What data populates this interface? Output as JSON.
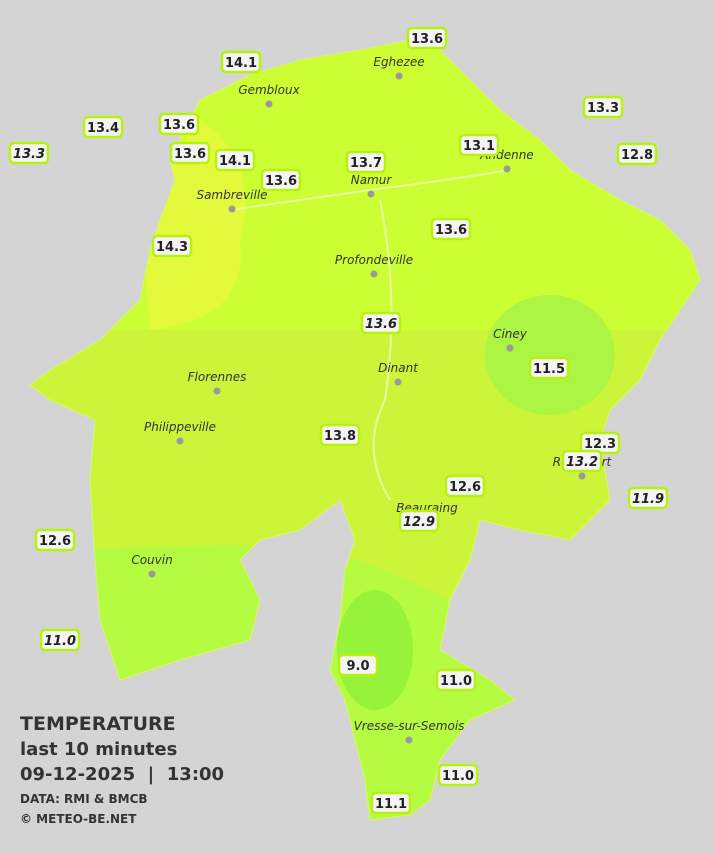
{
  "stations": [
    "14.1",
    "13.6",
    "13.4",
    "13.6",
    "13.3",
    "13.3",
    "13.6",
    "14.1",
    "13.1",
    "12.8",
    "13.7",
    "13.6",
    "13.6",
    "14.3",
    "13.6",
    "11.5",
    "13.8",
    "12.3",
    "13.2",
    "11.9",
    "12.6",
    "12.9",
    "12.6",
    "11.0",
    "9.0",
    "11.0",
    "11.0",
    "11.1"
  ],
  "towns": [
    "Eghezee",
    "Gembloux",
    "Andenne",
    "Namur",
    "Sambreville",
    "Profondeville",
    "Ciney",
    "Dinant",
    "Florennes",
    "Philippeville",
    "Rochefort",
    "Beauraing",
    "Couvin",
    "Vresse-sur-Semois"
  ],
  "legend": {
    "title": "TEMPERATURE",
    "period": "last 10 minutes",
    "datetime": "09-12-2025  |  13:00",
    "source": "DATA: RMI & BMCB",
    "copyright": "© METEO-BE.NET"
  }
}
